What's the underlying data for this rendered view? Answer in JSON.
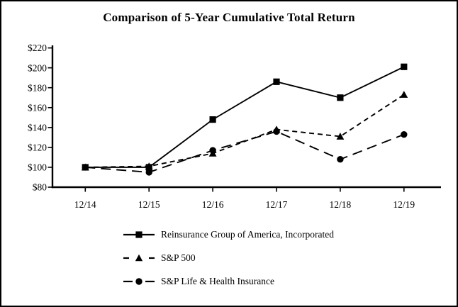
{
  "figure": {
    "background": "#ffffff",
    "border_color": "#000000"
  },
  "chart_data": {
    "type": "line",
    "title": "Comparison of 5-Year Cumulative Total Return",
    "categories": [
      "12/14",
      "12/15",
      "12/16",
      "12/17",
      "12/18",
      "12/19"
    ],
    "series": [
      {
        "name": "Reinsurance Group of America, Incorporated",
        "marker": "square",
        "line_style": "solid",
        "values": [
          100,
          100,
          148,
          186,
          170,
          201
        ]
      },
      {
        "name": "S&P 500",
        "marker": "triangle",
        "line_style": "short-dash",
        "values": [
          100,
          101,
          114,
          138,
          131,
          173
        ]
      },
      {
        "name": "S&P Life & Health Insurance",
        "marker": "circle",
        "line_style": "long-dash",
        "values": [
          100,
          95,
          117,
          136,
          108,
          133
        ]
      }
    ],
    "ylim": [
      80,
      220
    ],
    "ytick_step": 20,
    "ytick_labels": [
      "$80",
      "$100",
      "$120",
      "$140",
      "$160",
      "$180",
      "$200",
      "$220"
    ],
    "xlabel": "",
    "ylabel": "",
    "grid": false,
    "legend_position": "bottom",
    "line_color": "#000000"
  }
}
